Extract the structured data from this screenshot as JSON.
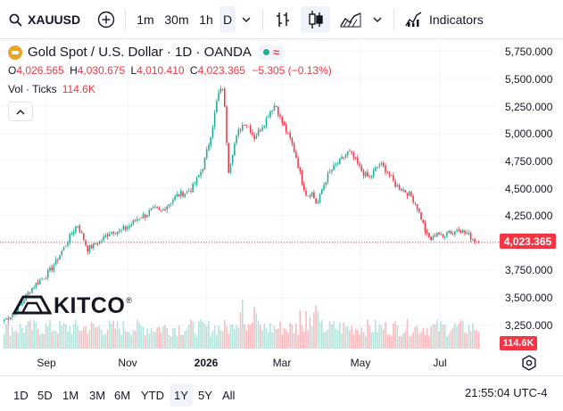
{
  "toolbar": {
    "symbol": "XAUUSD",
    "intervals": [
      "1m",
      "30m",
      "1h",
      "D"
    ],
    "active_interval": "D",
    "indicators_label": "Indicators"
  },
  "legend": {
    "title": "Gold Spot / U.S. Dollar · 1D · OANDA",
    "open_key": "O",
    "open": "4,026.565",
    "high_key": "H",
    "high": "4,030.675",
    "low_key": "L",
    "low": "4,010.410",
    "close_key": "C",
    "close": "4,023.365",
    "change": "−5.305 (−0.13%)",
    "volume_label": "Vol · Ticks",
    "volume_value": "114.6K"
  },
  "price_scale": {
    "labels": [
      "5,750.000",
      "5,500.000",
      "5,250.000",
      "5,000.000",
      "4,750.000",
      "4,500.000",
      "4,250.000",
      "3,750.000",
      "3,500.000",
      "3,250.000"
    ],
    "last_price": "4,023.365",
    "last_volume": "114.6K"
  },
  "time_axis": {
    "labels": [
      "Sep",
      "Nov",
      "2026",
      "Mar",
      "May",
      "Jul"
    ]
  },
  "watermark": {
    "text": "KITCO"
  },
  "bottom_bar": {
    "ranges": [
      "1D",
      "5D",
      "1M",
      "3M",
      "6M",
      "YTD",
      "1Y",
      "5Y",
      "All"
    ],
    "active_range": "1Y",
    "clock": "21:55:04 UTC-4"
  },
  "colors": {
    "up": "#22ab94",
    "down": "#f23645",
    "accent": "#e8a526"
  },
  "chart_data": {
    "type": "candlestick",
    "title": "Gold Spot / U.S. Dollar · 1D · OANDA",
    "x_tick_labels": [
      "Sep",
      "Nov",
      "2026",
      "Mar",
      "May",
      "Jul"
    ],
    "ylim": [
      3000,
      5900
    ],
    "y_tick_values": [
      3250,
      3500,
      3750,
      4250,
      4500,
      4750,
      5000,
      5250,
      5500,
      5750
    ],
    "last_value": 4023.365,
    "close_path": [
      3315,
      3345,
      3380,
      3440,
      3520,
      3590,
      3640,
      3680,
      3720,
      3780,
      3850,
      3940,
      4020,
      4110,
      4190,
      4080,
      3960,
      3990,
      4020,
      4060,
      4110,
      4130,
      4120,
      4150,
      4175,
      4220,
      4260,
      4270,
      4310,
      4330,
      4300,
      4350,
      4400,
      4450,
      4470,
      4480,
      4520,
      4600,
      4700,
      4880,
      5100,
      5380,
      5450,
      4680,
      4900,
      5050,
      5120,
      5080,
      4980,
      5060,
      5130,
      5230,
      5290,
      5150,
      5050,
      4950,
      4800,
      4600,
      4450,
      4480,
      4360,
      4520,
      4630,
      4700,
      4750,
      4800,
      4850,
      4800,
      4720,
      4650,
      4610,
      4680,
      4740,
      4700,
      4630,
      4550,
      4520,
      4490,
      4450,
      4370,
      4240,
      4090,
      4040,
      4120,
      4060,
      4140,
      4100,
      4160,
      4120,
      4090,
      4050,
      4023
    ],
    "volume_note": "Volume histogram drawn below candles, same date range"
  }
}
